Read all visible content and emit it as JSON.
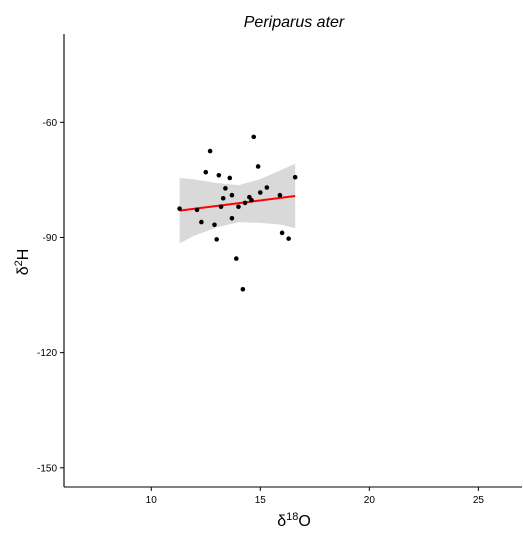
{
  "chart_data": {
    "type": "scatter",
    "title": "Periparus ater",
    "xlabel": {
      "base": "δ",
      "sup": "18",
      "rest": "O"
    },
    "ylabel": {
      "base": "δ",
      "sup": "2",
      "rest": "H"
    },
    "xlim": [
      6,
      27
    ],
    "ylim": [
      -155,
      -37
    ],
    "x_ticks": [
      10,
      15,
      20,
      25
    ],
    "y_ticks": [
      -150,
      -120,
      -90,
      -60
    ],
    "grid": false,
    "legend": "none",
    "colors": {
      "points": "#000000",
      "fit_line": "#ff0000",
      "confidence_band": "#d9d9d9",
      "axis": "#000000"
    },
    "points": [
      {
        "x": 11.3,
        "y": -82.5
      },
      {
        "x": 12.1,
        "y": -82.8
      },
      {
        "x": 12.3,
        "y": -86.0
      },
      {
        "x": 12.5,
        "y": -73.0
      },
      {
        "x": 12.7,
        "y": -67.5
      },
      {
        "x": 12.9,
        "y": -86.7
      },
      {
        "x": 13.0,
        "y": -90.5
      },
      {
        "x": 13.1,
        "y": -73.8
      },
      {
        "x": 13.2,
        "y": -82.0
      },
      {
        "x": 13.3,
        "y": -79.8
      },
      {
        "x": 13.4,
        "y": -77.2
      },
      {
        "x": 13.6,
        "y": -74.5
      },
      {
        "x": 13.7,
        "y": -79.0
      },
      {
        "x": 13.7,
        "y": -85.0
      },
      {
        "x": 13.9,
        "y": -95.5
      },
      {
        "x": 14.0,
        "y": -82.0
      },
      {
        "x": 14.2,
        "y": -103.5
      },
      {
        "x": 14.3,
        "y": -81.0
      },
      {
        "x": 14.5,
        "y": -79.5
      },
      {
        "x": 14.6,
        "y": -80.3
      },
      {
        "x": 14.7,
        "y": -63.8
      },
      {
        "x": 14.9,
        "y": -71.5
      },
      {
        "x": 15.0,
        "y": -78.3
      },
      {
        "x": 15.3,
        "y": -77.0
      },
      {
        "x": 15.9,
        "y": -79.0
      },
      {
        "x": 16.0,
        "y": -88.8
      },
      {
        "x": 16.3,
        "y": -90.3
      },
      {
        "x": 16.6,
        "y": -74.3
      }
    ],
    "fit_line": {
      "x": [
        11.3,
        16.6
      ],
      "y": [
        -83.0,
        -79.2
      ]
    },
    "confidence_band": {
      "x": [
        11.3,
        12.0,
        13.0,
        14.0,
        15.0,
        16.0,
        16.6
      ],
      "upper": [
        -74.5,
        -74.9,
        -75.8,
        -76.4,
        -74.8,
        -72.3,
        -70.8
      ],
      "lower": [
        -91.5,
        -89.5,
        -87.4,
        -86.0,
        -86.2,
        -86.7,
        -87.6
      ]
    }
  }
}
